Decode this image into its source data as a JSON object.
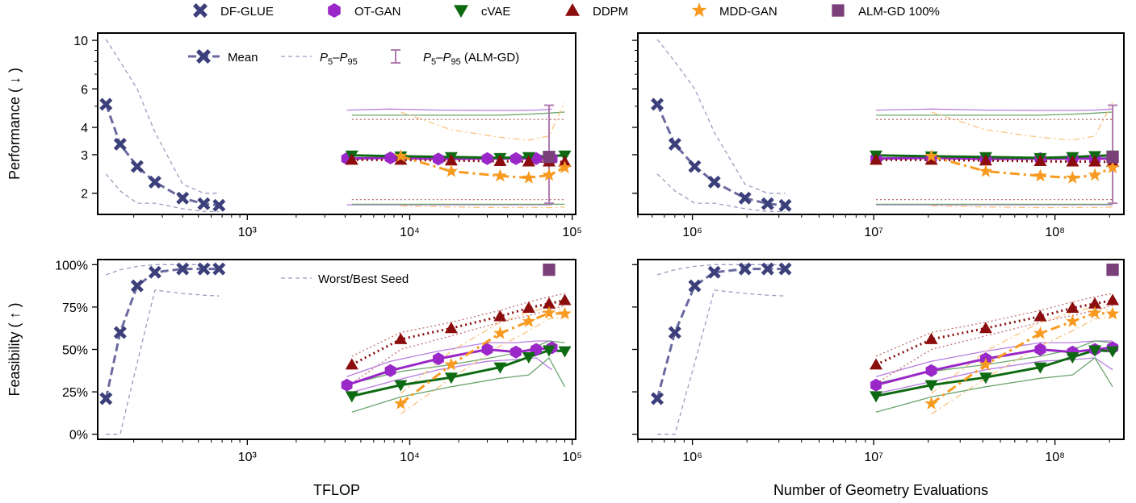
{
  "legend": {
    "methods": [
      {
        "key": "dfglue",
        "label": "DF-GLUE",
        "color": "#3b3f7a",
        "marker": "x"
      },
      {
        "key": "otgan",
        "label": "OT-GAN",
        "color": "#9a27c7",
        "marker": "hex"
      },
      {
        "key": "cvae",
        "label": "cVAE",
        "color": "#0e6a12",
        "marker": "tri-down"
      },
      {
        "key": "ddpm",
        "label": "DDPM",
        "color": "#8b0d0d",
        "marker": "tri-up"
      },
      {
        "key": "mddgan",
        "label": "MDD-GAN",
        "color": "#f79a1f",
        "marker": "star"
      },
      {
        "key": "almgd",
        "label": "ALM-GD 100%",
        "color": "#7b3f7a",
        "marker": "square"
      }
    ],
    "perf_inset": {
      "mean": "Mean",
      "p_range_main": "P",
      "p_sub_lo": "5",
      "p_dash": "–P",
      "p_sub_hi": "95",
      "p_alm_suffix": " (ALM-GD)"
    },
    "feas_inset": "Worst/Best Seed"
  },
  "chart_data": [
    {
      "panel": "top-left",
      "type": "line",
      "x_scale": "log",
      "y_scale": "log",
      "xlim": [
        120,
        105000
      ],
      "ylim": [
        1.6,
        10.8
      ],
      "x_tick_labels": [
        "10³",
        "10⁴",
        "10⁵"
      ],
      "x_ticks": [
        1000,
        10000,
        100000
      ],
      "y_ticks": [
        2,
        3,
        4,
        6,
        10
      ],
      "y_tick_labels": [
        "2",
        "3",
        "4",
        "6",
        "10"
      ],
      "ylabel": "Performance ( ↓ )",
      "xlabel": "",
      "series": [
        {
          "key": "dfglue",
          "x": [
            135,
            165,
            210,
            270,
            400,
            540,
            670
          ],
          "y": [
            5.1,
            3.35,
            2.65,
            2.25,
            1.9,
            1.79,
            1.76
          ],
          "p5": [
            2.45,
            2.05,
            1.8,
            1.8,
            1.7,
            1.65,
            1.65
          ],
          "p95": [
            10.1,
            8.0,
            6.0,
            3.8,
            2.2,
            2.0,
            2.0
          ]
        },
        {
          "key": "otgan",
          "x": [
            4100,
            7600,
            15000,
            30000,
            45000,
            60000,
            75000
          ],
          "y": [
            2.88,
            2.9,
            2.87,
            2.88,
            2.88,
            2.88,
            2.88
          ],
          "p5": [
            1.77,
            1.77,
            1.77,
            1.77,
            1.77,
            1.77,
            1.77
          ],
          "p95": [
            4.8,
            4.85,
            4.8,
            4.78,
            4.78,
            4.8,
            4.85
          ]
        },
        {
          "key": "cvae",
          "x": [
            4400,
            8800,
            18000,
            36000,
            54000,
            72000,
            90000
          ],
          "y": [
            2.98,
            2.95,
            2.93,
            2.9,
            2.93,
            2.96,
            2.98
          ],
          "p5": [
            1.78,
            1.78,
            1.78,
            1.78,
            1.78,
            1.78,
            1.78
          ],
          "p95": [
            4.55,
            4.55,
            4.55,
            4.55,
            4.6,
            4.65,
            4.7
          ]
        },
        {
          "key": "ddpm",
          "x": [
            4400,
            8800,
            18000,
            36000,
            54000,
            72000,
            90000
          ],
          "y": [
            2.84,
            2.84,
            2.82,
            2.8,
            2.79,
            2.79,
            2.78
          ],
          "p5": [
            1.87,
            1.87,
            1.87,
            1.87,
            1.87,
            1.87,
            1.87
          ],
          "p95": [
            4.35,
            4.35,
            4.35,
            4.35,
            4.35,
            4.35,
            4.35
          ]
        },
        {
          "key": "mddgan",
          "x": [
            8800,
            18000,
            36000,
            54000,
            72000,
            90000
          ],
          "y": [
            2.95,
            2.52,
            2.4,
            2.35,
            2.42,
            2.62
          ],
          "p5": [
            1.75,
            1.73,
            1.72,
            1.72,
            1.72,
            1.73
          ],
          "p95": [
            4.7,
            3.9,
            3.6,
            3.5,
            3.65,
            5.2
          ]
        },
        {
          "key": "almgd",
          "x": [
            72000
          ],
          "y": [
            2.93
          ],
          "err_lo": [
            1.8
          ],
          "err_hi": [
            5.05
          ]
        }
      ]
    },
    {
      "panel": "top-right",
      "type": "line",
      "x_scale": "log",
      "y_scale": "log",
      "xlim": [
        500000,
        240000000
      ],
      "ylim": [
        1.6,
        10.8
      ],
      "x_tick_labels": [
        "10⁶",
        "10⁷",
        "10⁸"
      ],
      "x_ticks": [
        1000000,
        10000000,
        100000000
      ],
      "y_ticks": [
        2,
        3,
        4,
        6,
        10
      ],
      "xlabel": "",
      "series": [
        {
          "key": "dfglue",
          "x": [
            640000,
            800000,
            1030000,
            1320000,
            1950000,
            2600000,
            3250000
          ],
          "y": [
            5.1,
            3.35,
            2.65,
            2.25,
            1.9,
            1.79,
            1.76
          ],
          "p5": [
            2.45,
            2.05,
            1.8,
            1.8,
            1.7,
            1.65,
            1.65
          ],
          "p95": [
            10.1,
            8.0,
            6.0,
            3.8,
            2.2,
            2.0,
            2.0
          ]
        },
        {
          "key": "otgan",
          "x": [
            10300000,
            20800000,
            41500000,
            83000000,
            125000000,
            166000000,
            208000000
          ],
          "y": [
            2.88,
            2.9,
            2.87,
            2.88,
            2.88,
            2.88,
            2.88
          ],
          "p5": [
            1.77,
            1.77,
            1.77,
            1.77,
            1.77,
            1.77,
            1.77
          ],
          "p95": [
            4.8,
            4.85,
            4.8,
            4.78,
            4.78,
            4.8,
            4.85
          ]
        },
        {
          "key": "cvae",
          "x": [
            10300000,
            20800000,
            41500000,
            83000000,
            125000000,
            166000000,
            208000000
          ],
          "y": [
            2.98,
            2.95,
            2.93,
            2.9,
            2.93,
            2.96,
            2.98
          ],
          "p5": [
            1.78,
            1.78,
            1.78,
            1.78,
            1.78,
            1.78,
            1.78
          ],
          "p95": [
            4.55,
            4.55,
            4.55,
            4.55,
            4.6,
            4.65,
            4.7
          ]
        },
        {
          "key": "ddpm",
          "x": [
            10300000,
            20800000,
            41500000,
            83000000,
            125000000,
            166000000,
            208000000
          ],
          "y": [
            2.84,
            2.84,
            2.82,
            2.8,
            2.79,
            2.79,
            2.78
          ],
          "p5": [
            1.87,
            1.87,
            1.87,
            1.87,
            1.87,
            1.87,
            1.87
          ],
          "p95": [
            4.35,
            4.35,
            4.35,
            4.35,
            4.35,
            4.35,
            4.35
          ]
        },
        {
          "key": "mddgan",
          "x": [
            20800000,
            41500000,
            83000000,
            125000000,
            166000000,
            208000000
          ],
          "y": [
            2.95,
            2.52,
            2.4,
            2.35,
            2.42,
            2.62
          ],
          "p5": [
            1.75,
            1.73,
            1.72,
            1.72,
            1.72,
            1.73
          ],
          "p95": [
            4.7,
            3.9,
            3.6,
            3.5,
            3.65,
            5.2
          ]
        },
        {
          "key": "almgd",
          "x": [
            208000000
          ],
          "y": [
            2.93
          ],
          "err_lo": [
            1.8
          ],
          "err_hi": [
            5.05
          ]
        }
      ]
    },
    {
      "panel": "bottom-left",
      "type": "line",
      "x_scale": "log",
      "y_scale": "linear",
      "xlim": [
        120,
        105000
      ],
      "ylim": [
        -0.03,
        1.03
      ],
      "x_tick_labels": [
        "10³",
        "10⁴",
        "10⁵"
      ],
      "x_ticks": [
        1000,
        10000,
        100000
      ],
      "y_ticks": [
        0,
        0.25,
        0.5,
        0.75,
        1.0
      ],
      "y_tick_labels": [
        "0%",
        "25%",
        "50%",
        "75%",
        "100%"
      ],
      "ylabel": "Feasibility ( ↑ )",
      "xlabel": "TFLOP",
      "series": [
        {
          "key": "dfglue",
          "x": [
            135,
            165,
            210,
            270,
            400,
            540,
            670
          ],
          "y": [
            0.21,
            0.6,
            0.875,
            0.955,
            0.975,
            0.975,
            0.975
          ],
          "worst": [
            0.0,
            0.0,
            0.42,
            0.85,
            0.83,
            0.82,
            0.815
          ],
          "best": [
            0.94,
            0.97,
            0.99,
            1.0,
            1.0,
            1.0,
            1.0
          ]
        },
        {
          "key": "otgan",
          "x": [
            4100,
            7600,
            15000,
            30000,
            45000,
            60000,
            75000
          ],
          "y": [
            0.29,
            0.375,
            0.445,
            0.5,
            0.485,
            0.5,
            0.51
          ],
          "worst": [
            0.24,
            0.31,
            0.38,
            0.43,
            0.44,
            0.45,
            0.38
          ],
          "best": [
            0.34,
            0.43,
            0.49,
            0.54,
            0.54,
            0.55,
            0.55
          ]
        },
        {
          "key": "cvae",
          "x": [
            4400,
            8800,
            18000,
            36000,
            54000,
            72000,
            90000
          ],
          "y": [
            0.225,
            0.29,
            0.335,
            0.395,
            0.455,
            0.495,
            0.49
          ],
          "worst": [
            0.13,
            0.22,
            0.28,
            0.33,
            0.35,
            0.45,
            0.28
          ],
          "best": [
            0.3,
            0.37,
            0.41,
            0.46,
            0.5,
            0.55,
            0.54
          ]
        },
        {
          "key": "ddpm",
          "x": [
            4400,
            8800,
            18000,
            36000,
            54000,
            72000,
            90000
          ],
          "y": [
            0.41,
            0.56,
            0.625,
            0.695,
            0.745,
            0.77,
            0.79
          ],
          "worst": [
            0.3,
            0.5,
            0.58,
            0.66,
            0.7,
            0.73,
            0.76
          ],
          "best": [
            0.46,
            0.6,
            0.66,
            0.73,
            0.78,
            0.81,
            0.83
          ]
        },
        {
          "key": "mddgan",
          "x": [
            8800,
            18000,
            36000,
            54000,
            72000,
            90000
          ],
          "y": [
            0.18,
            0.41,
            0.595,
            0.665,
            0.715,
            0.71
          ],
          "worst": [
            0.12,
            0.33,
            0.52,
            0.61,
            0.68,
            0.69
          ],
          "best": [
            0.24,
            0.49,
            0.66,
            0.72,
            0.75,
            0.73
          ]
        },
        {
          "key": "almgd",
          "x": [
            72000
          ],
          "y": [
            0.97
          ]
        }
      ]
    },
    {
      "panel": "bottom-right",
      "type": "line",
      "x_scale": "log",
      "y_scale": "linear",
      "xlim": [
        500000,
        240000000
      ],
      "ylim": [
        -0.03,
        1.03
      ],
      "x_tick_labels": [
        "10⁶",
        "10⁷",
        "10⁸"
      ],
      "x_ticks": [
        1000000,
        10000000,
        100000000
      ],
      "y_ticks": [
        0,
        0.25,
        0.5,
        0.75,
        1.0
      ],
      "xlabel": "Number of Geometry Evaluations",
      "series": [
        {
          "key": "dfglue",
          "x": [
            640000,
            800000,
            1030000,
            1320000,
            1950000,
            2600000,
            3250000
          ],
          "y": [
            0.21,
            0.6,
            0.875,
            0.955,
            0.975,
            0.975,
            0.975
          ],
          "worst": [
            0.0,
            0.0,
            0.42,
            0.85,
            0.83,
            0.82,
            0.815
          ],
          "best": [
            0.94,
            0.97,
            0.99,
            1.0,
            1.0,
            1.0,
            1.0
          ]
        },
        {
          "key": "otgan",
          "x": [
            10300000,
            20800000,
            41500000,
            83000000,
            125000000,
            166000000,
            208000000
          ],
          "y": [
            0.29,
            0.375,
            0.445,
            0.5,
            0.485,
            0.5,
            0.51
          ],
          "worst": [
            0.24,
            0.31,
            0.38,
            0.43,
            0.44,
            0.45,
            0.38
          ],
          "best": [
            0.34,
            0.43,
            0.49,
            0.54,
            0.54,
            0.55,
            0.55
          ]
        },
        {
          "key": "cvae",
          "x": [
            10300000,
            20800000,
            41500000,
            83000000,
            125000000,
            166000000,
            208000000
          ],
          "y": [
            0.225,
            0.29,
            0.335,
            0.395,
            0.455,
            0.495,
            0.49
          ],
          "worst": [
            0.13,
            0.22,
            0.28,
            0.33,
            0.35,
            0.45,
            0.28
          ],
          "best": [
            0.3,
            0.37,
            0.41,
            0.46,
            0.5,
            0.55,
            0.54
          ]
        },
        {
          "key": "ddpm",
          "x": [
            10300000,
            20800000,
            41500000,
            83000000,
            125000000,
            166000000,
            208000000
          ],
          "y": [
            0.41,
            0.56,
            0.625,
            0.695,
            0.745,
            0.77,
            0.79
          ],
          "worst": [
            0.3,
            0.5,
            0.58,
            0.66,
            0.7,
            0.73,
            0.76
          ],
          "best": [
            0.46,
            0.6,
            0.66,
            0.73,
            0.78,
            0.81,
            0.83
          ]
        },
        {
          "key": "mddgan",
          "x": [
            20800000,
            41500000,
            83000000,
            125000000,
            166000000,
            208000000
          ],
          "y": [
            0.18,
            0.41,
            0.595,
            0.665,
            0.715,
            0.71
          ],
          "worst": [
            0.12,
            0.33,
            0.52,
            0.61,
            0.68,
            0.69
          ],
          "best": [
            0.24,
            0.49,
            0.66,
            0.72,
            0.75,
            0.73
          ]
        },
        {
          "key": "almgd",
          "x": [
            208000000
          ],
          "y": [
            0.97
          ]
        }
      ]
    }
  ]
}
